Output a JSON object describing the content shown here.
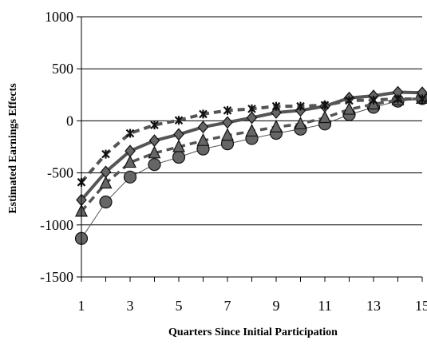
{
  "chart_data": {
    "type": "line",
    "title": "",
    "xlabel": "Quarters Since Initial Participation",
    "ylabel": "Estimated Earnings Effects",
    "x_ticks": [
      1,
      3,
      5,
      7,
      9,
      11,
      13,
      15
    ],
    "y_ticks": [
      1000,
      500,
      0,
      -500,
      -1000,
      -1500
    ],
    "xlim": [
      1,
      15
    ],
    "ylim": [
      -1500,
      1000
    ],
    "grid": "horizontal",
    "legend": "none",
    "x": [
      1,
      2,
      3,
      4,
      5,
      6,
      7,
      8,
      9,
      10,
      11,
      12,
      13,
      14,
      15
    ],
    "series": [
      {
        "marker": "circle",
        "line": "solid-thin",
        "color": "#555555",
        "values": [
          -1130,
          -780,
          -540,
          -420,
          -350,
          -270,
          -220,
          -170,
          -120,
          -80,
          -30,
          60,
          130,
          190,
          215
        ]
      },
      {
        "marker": "triangle",
        "line": "dashed",
        "color": "#555555",
        "values": [
          -870,
          -600,
          -400,
          -310,
          -250,
          -190,
          -140,
          -100,
          -60,
          -30,
          30,
          110,
          160,
          200,
          215
        ]
      },
      {
        "marker": "diamond",
        "line": "solid-thick",
        "color": "#555555",
        "values": [
          -760,
          -490,
          -290,
          -190,
          -130,
          -60,
          -15,
          30,
          80,
          100,
          140,
          220,
          240,
          275,
          270
        ]
      },
      {
        "marker": "asterisk",
        "line": "dashed-thick",
        "color": "#555555",
        "values": [
          -590,
          -320,
          -120,
          -40,
          5,
          65,
          100,
          115,
          140,
          140,
          150,
          195,
          200,
          210,
          210
        ]
      }
    ]
  }
}
